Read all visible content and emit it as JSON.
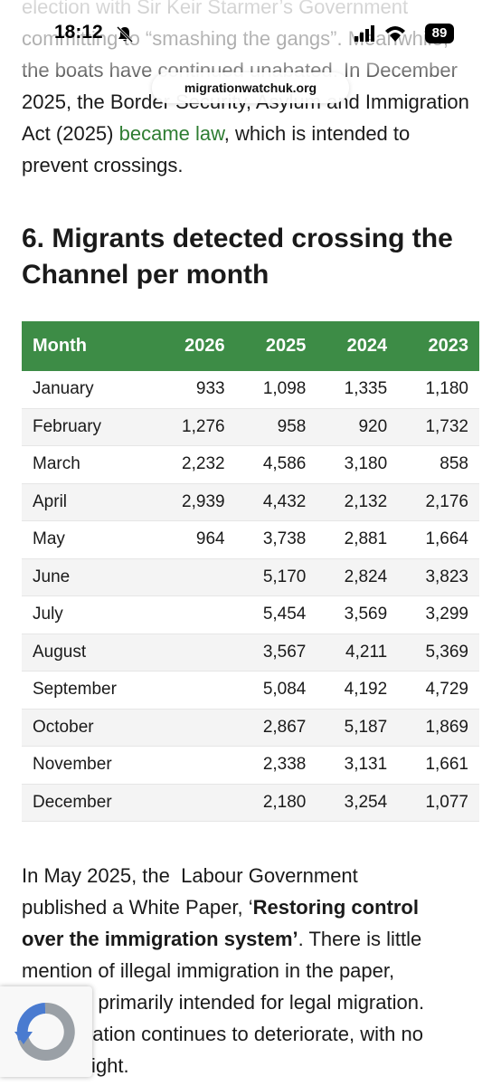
{
  "status_bar": {
    "time": "18:12",
    "battery": "89"
  },
  "address_bar": {
    "url": "migrationwatchuk.org"
  },
  "intro": {
    "before": "election with Sir Keir Starmer’s Government committing to “smashing the gangs”. Meanwhile, the boats have continued unabated. In December 2025, the Border Security, Asylum and Immigration Act (2025) ",
    "link": "became law",
    "after": ", which is intended to prevent crossings."
  },
  "heading": "6. Migrants detected crossing the Channel per month",
  "table": {
    "header": [
      "Month",
      "2026",
      "2025",
      "2024",
      "2023"
    ],
    "rows": [
      [
        "January",
        "933",
        "1,098",
        "1,335",
        "1,180"
      ],
      [
        "February",
        "1,276",
        "958",
        "920",
        "1,732"
      ],
      [
        "March",
        "2,232",
        "4,586",
        "3,180",
        "858"
      ],
      [
        "April",
        "2,939",
        "4,432",
        "2,132",
        "2,176"
      ],
      [
        "May",
        "964",
        "3,738",
        "2,881",
        "1,664"
      ],
      [
        "June",
        null,
        "5,170",
        "2,824",
        "3,823"
      ],
      [
        "July",
        null,
        "5,454",
        "3,569",
        "3,299"
      ],
      [
        "August",
        null,
        "3,567",
        "4,211",
        "5,369"
      ],
      [
        "September",
        null,
        "5,084",
        "4,192",
        "4,729"
      ],
      [
        "October",
        null,
        "2,867",
        "5,187",
        "1,869"
      ],
      [
        "November",
        null,
        "2,338",
        "3,131",
        "1,661"
      ],
      [
        "December",
        null,
        "2,180",
        "3,254",
        "1,077"
      ]
    ]
  },
  "outro": {
    "before": "In May 2025, the  Labour Government published a White Paper, ‘",
    "bold": "Restoring control over the immigration system’",
    "after": ". There is little mention of illegal immigration in the paper, which is primarily intended for legal migration. The situation continues to deteriorate, with no end in sight."
  }
}
